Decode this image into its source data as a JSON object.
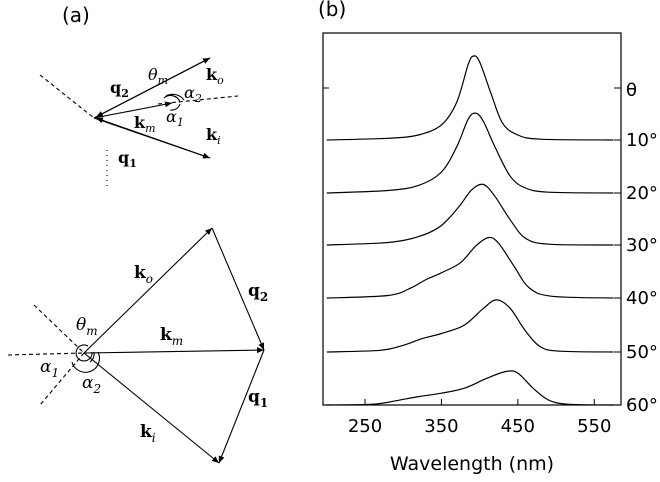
{
  "panel_a": {
    "label": "(a)",
    "upper": {
      "q2": "q",
      "q2_sub": "2",
      "theta": "θ",
      "theta_sub": "m",
      "ko": "k",
      "ko_sub": "o",
      "alpha2": "α",
      "alpha2_sub": "2",
      "alpha1": "α",
      "alpha1_sub": "1",
      "km": "k",
      "km_sub": "m",
      "ki": "k",
      "ki_sub": "i",
      "q1": "q",
      "q1_sub": "1"
    },
    "lower": {
      "ko": "k",
      "ko_sub": "o",
      "q2": "q",
      "q2_sub": "2",
      "theta": "θ",
      "theta_sub": "m",
      "km": "k",
      "km_sub": "m",
      "alpha1": "α",
      "alpha1_sub": "1",
      "alpha2": "α",
      "alpha2_sub": "2",
      "q1": "q",
      "q1_sub": "1",
      "ki": "k",
      "ki_sub": "i"
    }
  },
  "panel_b": {
    "label": "(b)"
  },
  "chart_data": {
    "type": "line",
    "xlabel": "Wavelength (nm)",
    "xlim": [
      195,
      585
    ],
    "xticks": [
      250,
      350,
      450,
      550
    ],
    "right_labels": [
      "θ",
      "10°",
      "20°",
      "30°",
      "40°",
      "50°",
      "60°"
    ],
    "note": "spectra vertically offset; one curve per angle",
    "series": [
      {
        "name": "10°",
        "baseline": 0.0,
        "points": [
          [
            200,
            0
          ],
          [
            280,
            0.02
          ],
          [
            320,
            0.06
          ],
          [
            350,
            0.18
          ],
          [
            370,
            0.45
          ],
          [
            385,
            0.9
          ],
          [
            392,
            1.0
          ],
          [
            400,
            0.93
          ],
          [
            415,
            0.55
          ],
          [
            430,
            0.2
          ],
          [
            450,
            0.06
          ],
          [
            480,
            0.01
          ],
          [
            575,
            0
          ]
        ]
      },
      {
        "name": "20°",
        "baseline": 0.0,
        "points": [
          [
            200,
            0
          ],
          [
            280,
            0.03
          ],
          [
            320,
            0.09
          ],
          [
            350,
            0.25
          ],
          [
            370,
            0.55
          ],
          [
            385,
            0.88
          ],
          [
            395,
            0.95
          ],
          [
            405,
            0.85
          ],
          [
            420,
            0.55
          ],
          [
            440,
            0.2
          ],
          [
            460,
            0.06
          ],
          [
            490,
            0.01
          ],
          [
            575,
            0
          ]
        ]
      },
      {
        "name": "30°",
        "baseline": 0.0,
        "points": [
          [
            200,
            0
          ],
          [
            280,
            0.03
          ],
          [
            320,
            0.1
          ],
          [
            345,
            0.2
          ],
          [
            360,
            0.32
          ],
          [
            375,
            0.48
          ],
          [
            390,
            0.66
          ],
          [
            405,
            0.72
          ],
          [
            420,
            0.58
          ],
          [
            440,
            0.3
          ],
          [
            460,
            0.08
          ],
          [
            490,
            0.01
          ],
          [
            575,
            0
          ]
        ]
      },
      {
        "name": "40°",
        "baseline": 0.0,
        "points": [
          [
            200,
            0
          ],
          [
            280,
            0.03
          ],
          [
            310,
            0.12
          ],
          [
            330,
            0.22
          ],
          [
            350,
            0.3
          ],
          [
            375,
            0.42
          ],
          [
            395,
            0.62
          ],
          [
            412,
            0.72
          ],
          [
            425,
            0.65
          ],
          [
            445,
            0.38
          ],
          [
            465,
            0.12
          ],
          [
            495,
            0.02
          ],
          [
            575,
            0
          ]
        ]
      },
      {
        "name": "50°",
        "baseline": 0.0,
        "points": [
          [
            200,
            0
          ],
          [
            270,
            0.02
          ],
          [
            300,
            0.08
          ],
          [
            325,
            0.16
          ],
          [
            350,
            0.22
          ],
          [
            380,
            0.32
          ],
          [
            405,
            0.52
          ],
          [
            422,
            0.62
          ],
          [
            440,
            0.52
          ],
          [
            460,
            0.25
          ],
          [
            480,
            0.06
          ],
          [
            505,
            0.01
          ],
          [
            575,
            0
          ]
        ]
      },
      {
        "name": "60°",
        "baseline": 0.0,
        "points": [
          [
            200,
            0
          ],
          [
            260,
            0.01
          ],
          [
            290,
            0.05
          ],
          [
            320,
            0.1
          ],
          [
            350,
            0.14
          ],
          [
            380,
            0.2
          ],
          [
            410,
            0.32
          ],
          [
            435,
            0.4
          ],
          [
            450,
            0.38
          ],
          [
            470,
            0.2
          ],
          [
            490,
            0.06
          ],
          [
            515,
            0.01
          ],
          [
            575,
            0
          ]
        ]
      }
    ]
  }
}
